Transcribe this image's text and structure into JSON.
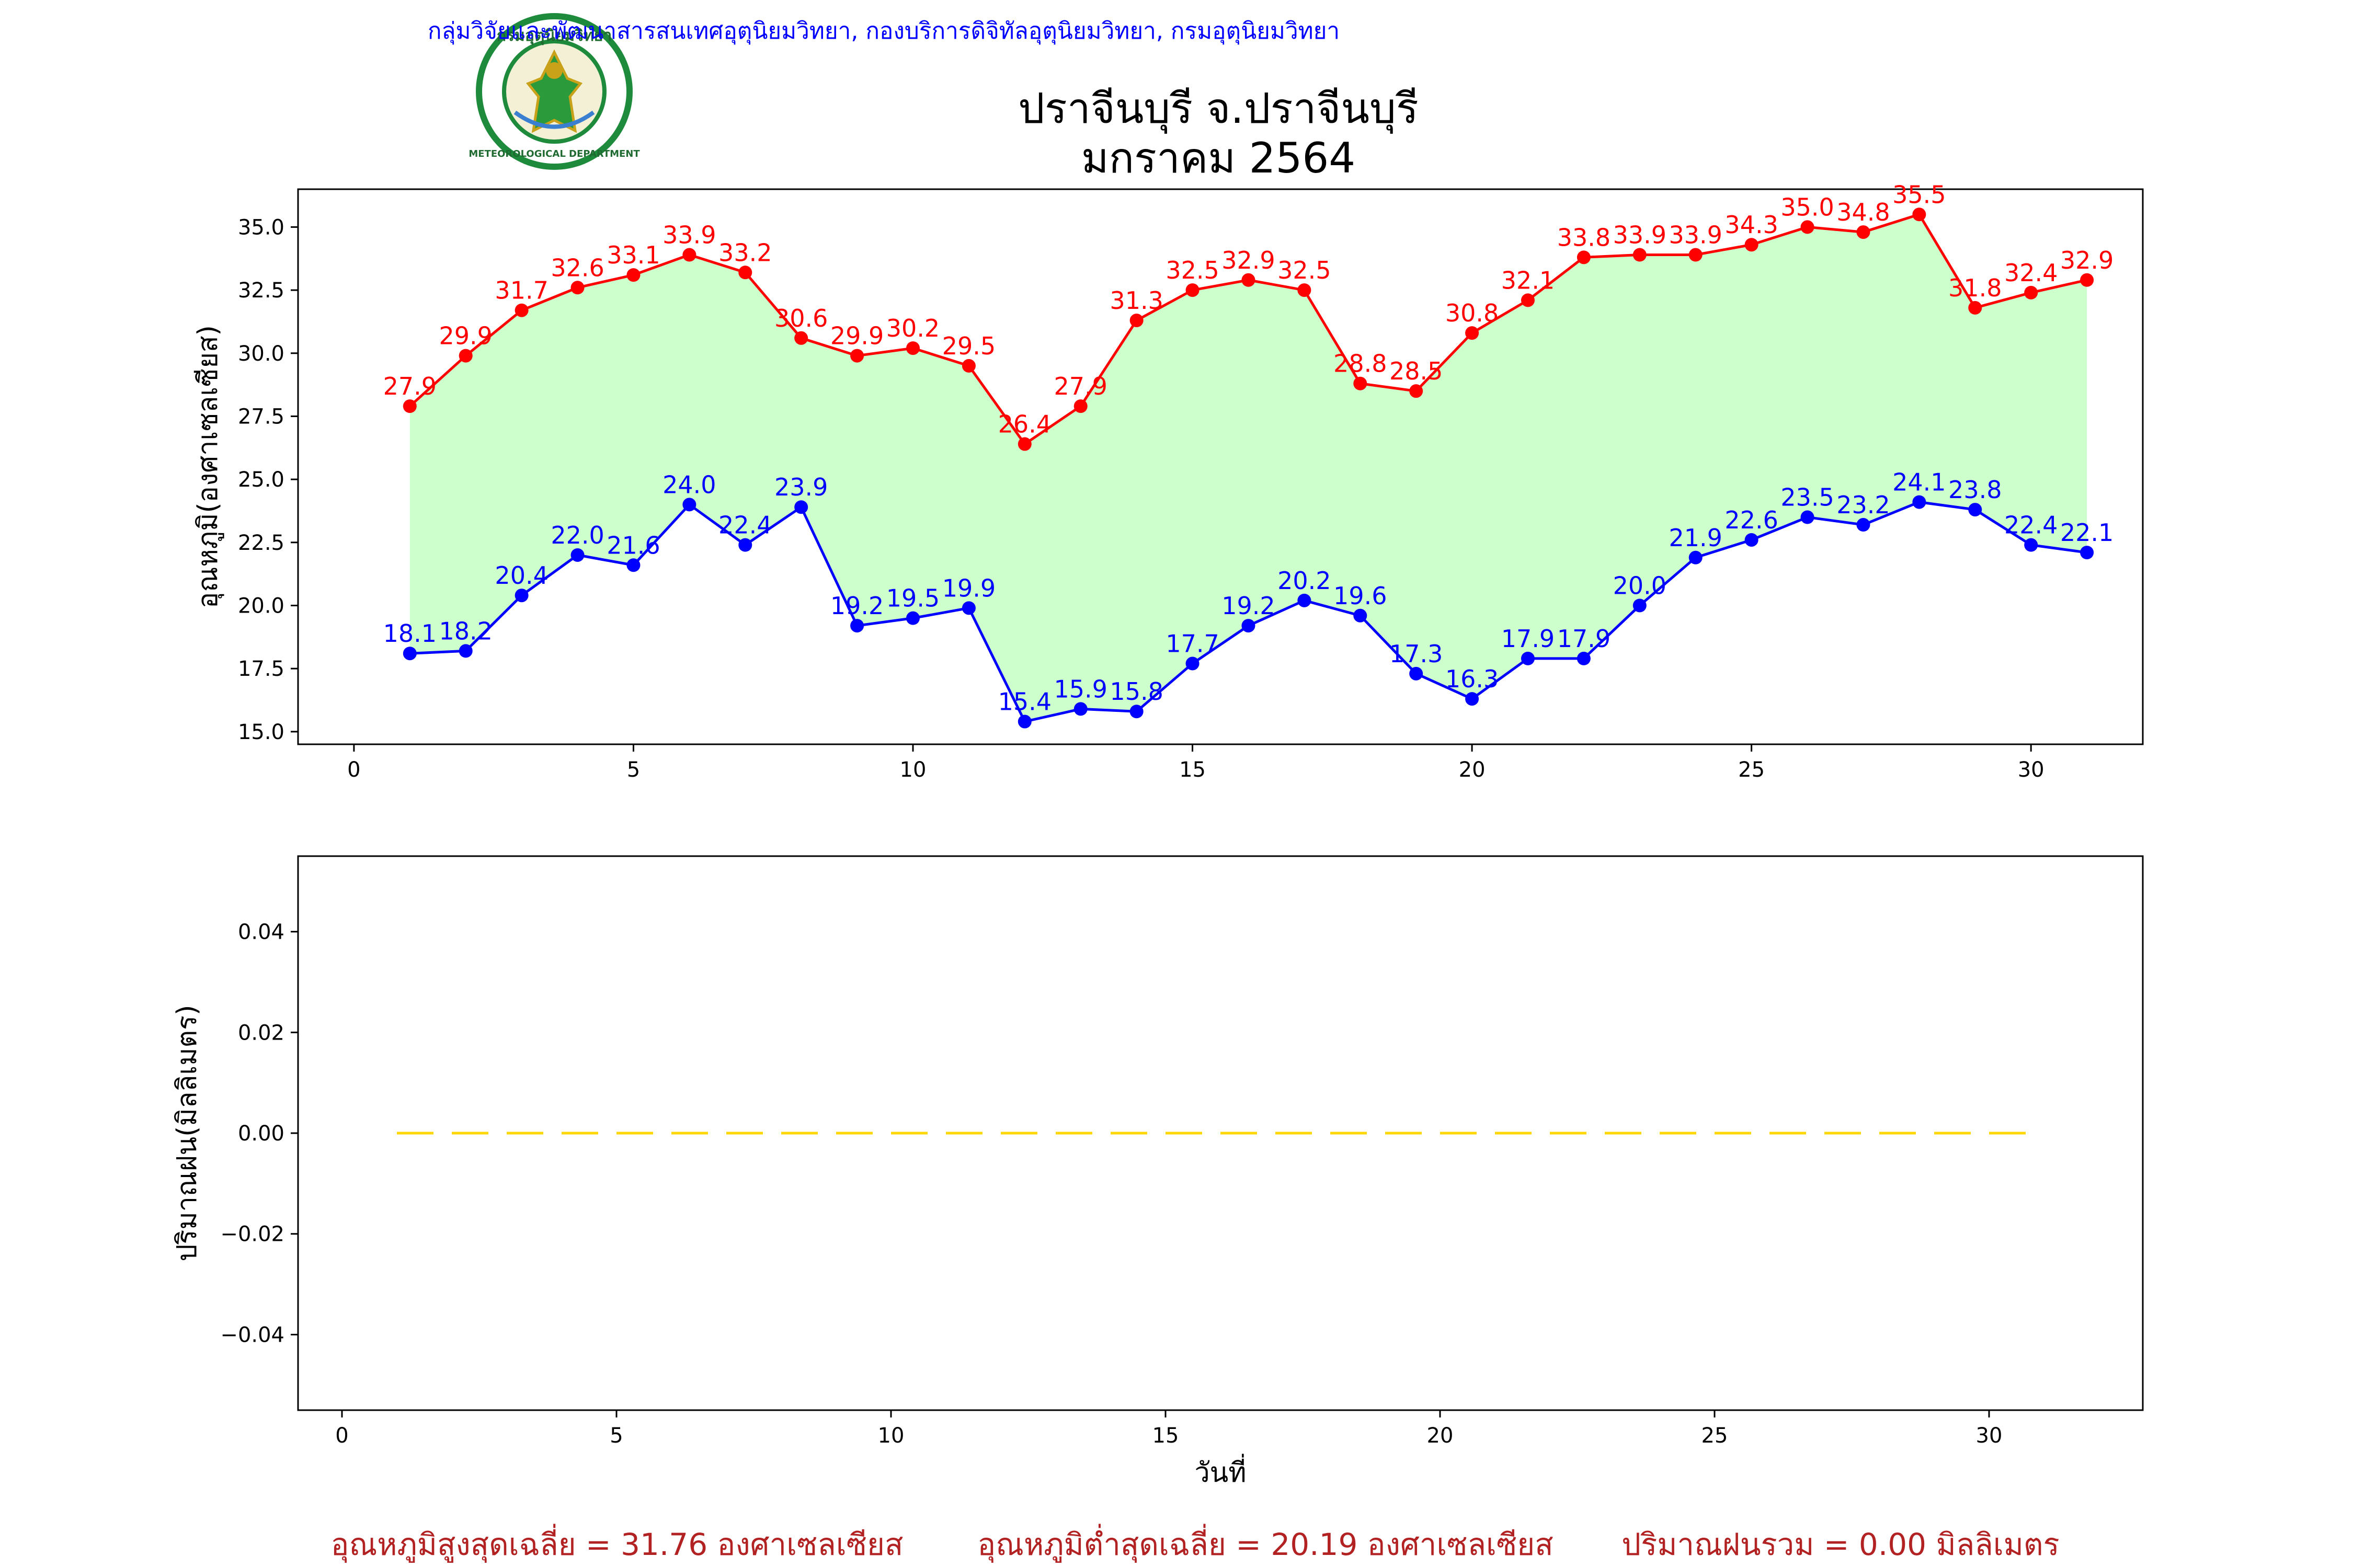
{
  "header": {
    "org_line": "กลุ่มวิจัยและพัฒนาสารสนเทศอุตุนิยมวิทยา, กองบริการดิจิทัลอุตุนิยมวิทยา, กรมอุตุนิยมวิทยา",
    "title_line1": "ปราจีนบุรี จ.ปราจีนบุรี",
    "title_line2": "มกราคม 2564",
    "logo_top_text": "กรมอุตุนิยมวิทยา",
    "logo_bottom_text": "METEOROLOGICAL DEPARTMENT"
  },
  "colors": {
    "max": "#ff0000",
    "min": "#0000ff",
    "fill": "#ccffcc",
    "rain": "#ffd700",
    "org_text": "#0000ff",
    "footer_text": "#b22222"
  },
  "footer": {
    "avg_max": "อุณหภูมิสูงสุดเฉลี่ย = 31.76 องศาเซลเซียส",
    "avg_min": "อุณหภูมิต่ำสุดเฉลี่ย = 20.19 องศาเซลเซียส",
    "rain_total": "ปริมาณฝนรวม = 0.00 มิลลิเมตร"
  },
  "chart_data": [
    {
      "type": "line",
      "title": "ปราจีนบุรี จ.ปราจีนบุรี มกราคม 2564",
      "xlabel": "",
      "ylabel": "อุณหภูมิ(องศาเซลเซียส)",
      "x": [
        1,
        2,
        3,
        4,
        5,
        6,
        7,
        8,
        9,
        10,
        11,
        12,
        13,
        14,
        15,
        16,
        17,
        18,
        19,
        20,
        21,
        22,
        23,
        24,
        25,
        26,
        27,
        28,
        29,
        30,
        31
      ],
      "xlim": [
        -1,
        32
      ],
      "ylim": [
        14.5,
        36.5
      ],
      "xticks": [
        0,
        5,
        10,
        15,
        20,
        25,
        30
      ],
      "yticks": [
        15.0,
        17.5,
        20.0,
        22.5,
        25.0,
        27.5,
        30.0,
        32.5,
        35.0
      ],
      "fill_between": true,
      "series": [
        {
          "key": "max",
          "values": [
            27.9,
            29.9,
            31.7,
            32.6,
            33.1,
            33.9,
            33.2,
            30.6,
            29.9,
            30.2,
            29.5,
            26.4,
            27.9,
            31.3,
            32.5,
            32.9,
            32.5,
            28.8,
            28.5,
            30.8,
            32.1,
            33.8,
            33.9,
            33.9,
            34.3,
            35.0,
            34.8,
            35.5,
            31.8,
            32.4,
            32.9
          ]
        },
        {
          "key": "min",
          "values": [
            18.1,
            18.2,
            20.4,
            22.0,
            21.6,
            24.0,
            22.4,
            23.9,
            19.2,
            19.5,
            19.9,
            15.4,
            15.9,
            15.8,
            17.7,
            19.2,
            20.2,
            19.6,
            17.3,
            16.3,
            17.9,
            17.9,
            20.0,
            21.9,
            22.6,
            23.5,
            23.2,
            24.1,
            23.8,
            22.4,
            22.1
          ]
        }
      ]
    },
    {
      "type": "line",
      "xlabel": "วันที่",
      "ylabel": "ปริมาณฝน(มิลลิเมตร)",
      "x": [
        1,
        2,
        3,
        4,
        5,
        6,
        7,
        8,
        9,
        10,
        11,
        12,
        13,
        14,
        15,
        16,
        17,
        18,
        19,
        20,
        21,
        22,
        23,
        24,
        25,
        26,
        27,
        28,
        29,
        30,
        31
      ],
      "xlim": [
        -0.8,
        32.8
      ],
      "ylim": [
        -0.055,
        0.055
      ],
      "xticks": [
        0,
        5,
        10,
        15,
        20,
        25,
        30
      ],
      "yticks": [
        -0.04,
        -0.02,
        0.0,
        0.02,
        0.04
      ],
      "ytick_labels": [
        "−0.04",
        "−0.02",
        "0.00",
        "0.02",
        "0.04"
      ],
      "line_style": "dashed",
      "series": [
        {
          "key": "rain",
          "values": [
            0,
            0,
            0,
            0,
            0,
            0,
            0,
            0,
            0,
            0,
            0,
            0,
            0,
            0,
            0,
            0,
            0,
            0,
            0,
            0,
            0,
            0,
            0,
            0,
            0,
            0,
            0,
            0,
            0,
            0,
            0
          ]
        }
      ]
    }
  ]
}
